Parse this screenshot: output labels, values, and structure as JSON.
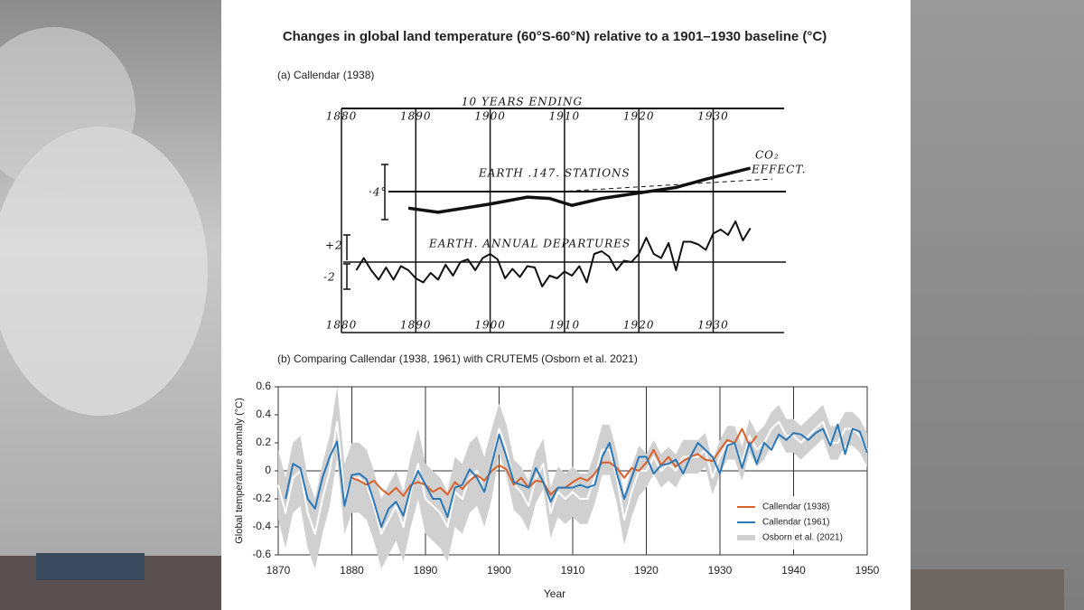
{
  "title": "Changes in global land temperature (60°S-60°N) relative to a 1901–1930 baseline (°C)",
  "chart_data": [
    {
      "type": "line",
      "title": "(a) Callendar (1938)",
      "xlabel": "10 YEARS ENDING",
      "xlim": [
        1880,
        1940
      ],
      "xticks": [
        1880,
        1890,
        1900,
        1910,
        1920,
        1930
      ],
      "ylim": [
        -1,
        0.6
      ],
      "y2lim": [
        -5,
        11
      ],
      "annotations": [
        "CO₂",
        "EFFECT.",
        "·4°",
        "+2",
        "-2"
      ],
      "series": [
        {
          "name": "EARTH .147. STATIONS",
          "color": "#111111",
          "x": [
            1889,
            1893,
            1900,
            1905,
            1908,
            1911,
            1915,
            1920,
            1925,
            1929,
            1932,
            1935
          ],
          "values": [
            -0.12,
            -0.15,
            -0.09,
            -0.04,
            -0.05,
            -0.1,
            -0.05,
            -0.01,
            0.03,
            0.09,
            0.13,
            0.17
          ]
        },
        {
          "name": "EARTH. ANNUAL DEPARTURES",
          "color": "#111111",
          "axis": "y2",
          "x": [
            1882,
            1883,
            1884,
            1885,
            1886,
            1887,
            1888,
            1889,
            1890,
            1891,
            1892,
            1893,
            1894,
            1895,
            1896,
            1897,
            1898,
            1899,
            1900,
            1901,
            1902,
            1903,
            1904,
            1905,
            1906,
            1907,
            1908,
            1909,
            1910,
            1911,
            1912,
            1913,
            1914,
            1915,
            1916,
            1917,
            1918,
            1919,
            1920,
            1921,
            1922,
            1923,
            1924,
            1925,
            1926,
            1927,
            1928,
            1929,
            1930,
            1931,
            1932,
            1933,
            1934,
            1935
          ],
          "values": [
            -0.6,
            0.3,
            -0.6,
            -1.3,
            -0.4,
            -1.3,
            -0.3,
            -0.6,
            -1.2,
            -1.5,
            -0.8,
            -1.3,
            -0.2,
            -1.0,
            0.0,
            0.2,
            -0.6,
            0.3,
            0.6,
            0.2,
            -1.2,
            -0.5,
            -1.1,
            -0.3,
            -0.4,
            -1.8,
            -1.0,
            -1.2,
            -0.7,
            -1.0,
            -0.3,
            -1.5,
            0.6,
            0.8,
            0.4,
            -0.6,
            0.1,
            0.0,
            0.6,
            1.8,
            0.6,
            0.3,
            1.4,
            -0.6,
            1.5,
            1.5,
            1.3,
            0.9,
            2.1,
            2.4,
            2.0,
            3.0,
            1.6,
            2.5
          ]
        }
      ]
    },
    {
      "type": "line",
      "title": "(b) Comparing Callendar (1938, 1961) with CRUTEM5 (Osborn et al. 2021)",
      "xlabel": "Year",
      "ylabel": "Global temperature anomaly (°C)",
      "xlim": [
        1870,
        1950
      ],
      "xticks": [
        1870,
        1880,
        1890,
        1900,
        1910,
        1920,
        1930,
        1940,
        1950
      ],
      "ylim": [
        -0.6,
        0.6
      ],
      "yticks": [
        0.6,
        0.4,
        0.2,
        0,
        -0.2,
        -0.4,
        -0.6
      ],
      "grid": "x",
      "legend": "lower right",
      "series": [
        {
          "name": "Callendar (1938)",
          "color": "#d9622b",
          "x": [
            1880,
            1881,
            1882,
            1883,
            1884,
            1885,
            1886,
            1887,
            1888,
            1889,
            1890,
            1891,
            1892,
            1893,
            1894,
            1895,
            1896,
            1897,
            1898,
            1899,
            1900,
            1901,
            1902,
            1903,
            1904,
            1905,
            1906,
            1907,
            1908,
            1909,
            1910,
            1911,
            1912,
            1913,
            1914,
            1915,
            1916,
            1917,
            1918,
            1919,
            1920,
            1921,
            1922,
            1923,
            1924,
            1925,
            1926,
            1927,
            1928,
            1929,
            1930,
            1931,
            1932,
            1933,
            1934,
            1935
          ],
          "values": [
            -0.05,
            -0.07,
            -0.1,
            -0.07,
            -0.13,
            -0.17,
            -0.12,
            -0.18,
            -0.1,
            -0.08,
            -0.1,
            -0.15,
            -0.12,
            -0.17,
            -0.08,
            -0.13,
            -0.07,
            -0.03,
            -0.07,
            0.0,
            0.04,
            0.01,
            -0.1,
            -0.05,
            -0.12,
            -0.07,
            -0.08,
            -0.17,
            -0.12,
            -0.12,
            -0.08,
            -0.05,
            -0.07,
            -0.02,
            0.06,
            0.06,
            0.02,
            -0.05,
            0.02,
            0.0,
            0.06,
            0.15,
            0.04,
            0.1,
            0.03,
            0.07,
            0.1,
            0.12,
            0.08,
            0.07,
            0.15,
            0.22,
            0.2,
            0.3,
            0.18,
            0.25
          ]
        },
        {
          "name": "Callendar (1961)",
          "color": "#2a78b8",
          "x": [
            1871,
            1872,
            1873,
            1874,
            1875,
            1876,
            1877,
            1878,
            1879,
            1880,
            1881,
            1882,
            1883,
            1884,
            1885,
            1886,
            1887,
            1888,
            1889,
            1890,
            1891,
            1892,
            1893,
            1894,
            1895,
            1896,
            1897,
            1898,
            1899,
            1900,
            1901,
            1902,
            1903,
            1904,
            1905,
            1906,
            1907,
            1908,
            1909,
            1910,
            1911,
            1912,
            1913,
            1914,
            1915,
            1916,
            1917,
            1918,
            1919,
            1920,
            1921,
            1922,
            1923,
            1924,
            1925,
            1926,
            1927,
            1928,
            1929,
            1930,
            1931,
            1932,
            1933,
            1934,
            1935,
            1936,
            1937,
            1938,
            1939,
            1940,
            1941,
            1942,
            1943,
            1944,
            1945,
            1946,
            1947,
            1948,
            1949,
            1950
          ],
          "values": [
            -0.2,
            0.05,
            0.02,
            -0.2,
            -0.27,
            -0.05,
            0.1,
            0.21,
            -0.25,
            -0.03,
            -0.02,
            -0.06,
            -0.22,
            -0.4,
            -0.27,
            -0.22,
            -0.32,
            -0.12,
            0.0,
            -0.1,
            -0.2,
            -0.2,
            -0.33,
            -0.12,
            -0.1,
            0.01,
            -0.05,
            -0.15,
            0.05,
            0.26,
            0.1,
            -0.08,
            -0.1,
            -0.12,
            0.02,
            -0.08,
            -0.22,
            -0.12,
            -0.12,
            -0.12,
            -0.1,
            -0.12,
            -0.1,
            0.1,
            0.2,
            -0.02,
            -0.2,
            -0.05,
            0.1,
            0.1,
            -0.02,
            0.04,
            0.05,
            0.08,
            -0.02,
            0.1,
            0.2,
            0.15,
            0.1,
            -0.02,
            0.18,
            0.2,
            0.02,
            0.2,
            0.05,
            0.2,
            0.15,
            0.26,
            0.22,
            0.27,
            0.26,
            0.22,
            0.27,
            0.3,
            0.18,
            0.33,
            0.12,
            0.3,
            0.28,
            0.13
          ]
        },
        {
          "name": "Osborn et al. (2021)",
          "color": "#d0d0d0",
          "x": [
            1870,
            1871,
            1872,
            1873,
            1874,
            1875,
            1876,
            1877,
            1878,
            1879,
            1880,
            1881,
            1882,
            1883,
            1884,
            1885,
            1886,
            1887,
            1888,
            1889,
            1890,
            1891,
            1892,
            1893,
            1894,
            1895,
            1896,
            1897,
            1898,
            1899,
            1900,
            1901,
            1902,
            1903,
            1904,
            1905,
            1906,
            1907,
            1908,
            1909,
            1910,
            1911,
            1912,
            1913,
            1914,
            1915,
            1916,
            1917,
            1918,
            1919,
            1920,
            1921,
            1922,
            1923,
            1924,
            1925,
            1926,
            1927,
            1928,
            1929,
            1930,
            1931,
            1932,
            1933,
            1934,
            1935,
            1936,
            1937,
            1938,
            1939,
            1940,
            1941,
            1942,
            1943,
            1944,
            1945,
            1946,
            1947,
            1948,
            1949,
            1950
          ],
          "values": [
            -0.1,
            -0.3,
            -0.05,
            0.0,
            -0.3,
            -0.45,
            -0.2,
            0.0,
            0.35,
            -0.2,
            -0.05,
            -0.05,
            -0.1,
            -0.25,
            -0.45,
            -0.35,
            -0.25,
            -0.4,
            -0.15,
            0.05,
            -0.2,
            -0.25,
            -0.3,
            -0.4,
            -0.15,
            -0.2,
            -0.05,
            0.0,
            -0.15,
            0.05,
            0.3,
            0.15,
            -0.1,
            -0.15,
            -0.25,
            -0.05,
            0.05,
            -0.3,
            -0.15,
            -0.2,
            -0.15,
            -0.2,
            -0.2,
            -0.05,
            0.15,
            0.15,
            -0.05,
            -0.35,
            -0.15,
            0.0,
            0.0,
            0.1,
            0.0,
            0.05,
            0.0,
            0.1,
            0.1,
            0.1,
            0.15,
            -0.05,
            0.1,
            0.2,
            0.2,
            0.05,
            0.25,
            0.15,
            0.2,
            0.3,
            0.35,
            0.25,
            0.25,
            0.2,
            0.25,
            0.3,
            0.35,
            0.2,
            0.2,
            0.3,
            0.3,
            0.25,
            0.15
          ],
          "error": [
            0.25,
            0.25,
            0.25,
            0.25,
            0.25,
            0.25,
            0.25,
            0.25,
            0.25,
            0.25,
            0.25,
            0.25,
            0.25,
            0.25,
            0.25,
            0.25,
            0.25,
            0.25,
            0.25,
            0.25,
            0.25,
            0.25,
            0.25,
            0.25,
            0.25,
            0.25,
            0.25,
            0.25,
            0.25,
            0.25,
            0.18,
            0.18,
            0.18,
            0.18,
            0.18,
            0.18,
            0.18,
            0.18,
            0.18,
            0.18,
            0.18,
            0.18,
            0.18,
            0.18,
            0.18,
            0.18,
            0.18,
            0.18,
            0.18,
            0.18,
            0.12,
            0.12,
            0.12,
            0.12,
            0.12,
            0.12,
            0.12,
            0.12,
            0.12,
            0.12,
            0.12,
            0.12,
            0.12,
            0.12,
            0.12,
            0.12,
            0.12,
            0.12,
            0.12,
            0.12,
            0.12,
            0.12,
            0.12,
            0.12,
            0.12,
            0.12,
            0.12,
            0.12,
            0.12,
            0.12,
            0.12
          ]
        }
      ]
    }
  ]
}
